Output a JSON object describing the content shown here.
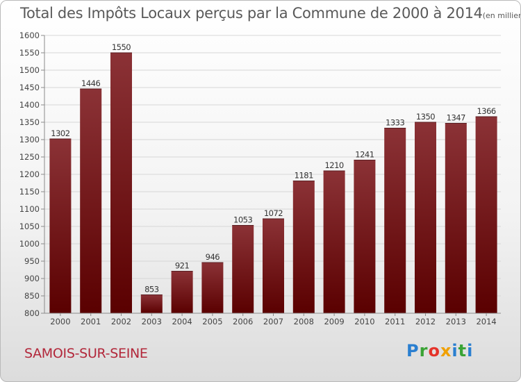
{
  "header": {
    "title": "Total des Impôts Locaux perçus par la Commune de 2000 à 2014",
    "unit_note": "(en milliers d'€)"
  },
  "footer": {
    "commune": "SAMOIS-SUR-SEINE",
    "brand_parts": [
      "P",
      "r",
      "o",
      "x",
      "i",
      "t",
      "i"
    ]
  },
  "colors": {
    "bar_top": "#8b3236",
    "bar_bottom": "#5a0000",
    "title": "#595959",
    "commune": "#b2273a"
  },
  "chart_data": {
    "type": "bar",
    "title": "Total des Impôts Locaux perçus par la Commune de 2000 à 2014",
    "xlabel": "",
    "ylabel": "",
    "categories": [
      "2000",
      "2001",
      "2002",
      "2003",
      "2004",
      "2005",
      "2006",
      "2007",
      "2008",
      "2009",
      "2010",
      "2011",
      "2012",
      "2013",
      "2014"
    ],
    "values": [
      1302,
      1446,
      1550,
      853,
      921,
      946,
      1053,
      1072,
      1181,
      1210,
      1241,
      1333,
      1350,
      1347,
      1366
    ],
    "ylim": [
      800,
      1600
    ],
    "yticks": [
      800,
      850,
      900,
      950,
      1000,
      1050,
      1100,
      1150,
      1200,
      1250,
      1300,
      1350,
      1400,
      1450,
      1500,
      1550,
      1600
    ],
    "grid": true,
    "data_labels": true
  }
}
